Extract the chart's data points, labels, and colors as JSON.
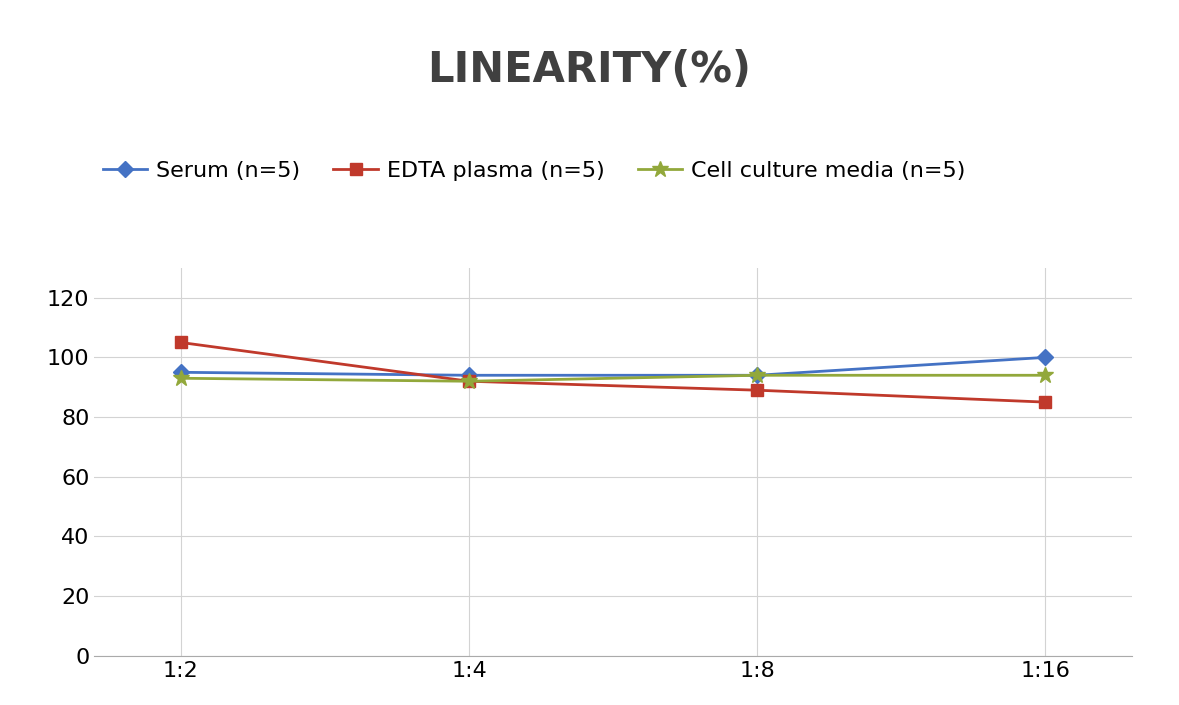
{
  "title": "LINEARITY(%)",
  "x_labels": [
    "1:2",
    "1:4",
    "1:8",
    "1:16"
  ],
  "x_positions": [
    0,
    1,
    2,
    3
  ],
  "series": [
    {
      "label": "Serum (n=5)",
      "values": [
        95,
        94,
        94,
        100
      ],
      "color": "#4472C4",
      "marker": "D",
      "markersize": 8,
      "linewidth": 2
    },
    {
      "label": "EDTA plasma (n=5)",
      "values": [
        105,
        92,
        89,
        85
      ],
      "color": "#C0392B",
      "marker": "s",
      "markersize": 8,
      "linewidth": 2
    },
    {
      "label": "Cell culture media (n=5)",
      "values": [
        93,
        92,
        94,
        94
      ],
      "color": "#92A83B",
      "marker": "*",
      "markersize": 12,
      "linewidth": 2
    }
  ],
  "ylim": [
    0,
    130
  ],
  "yticks": [
    0,
    20,
    40,
    60,
    80,
    100,
    120
  ],
  "background_color": "#ffffff",
  "grid_color": "#d3d3d3",
  "title_fontsize": 30,
  "tick_fontsize": 16,
  "legend_fontsize": 16
}
